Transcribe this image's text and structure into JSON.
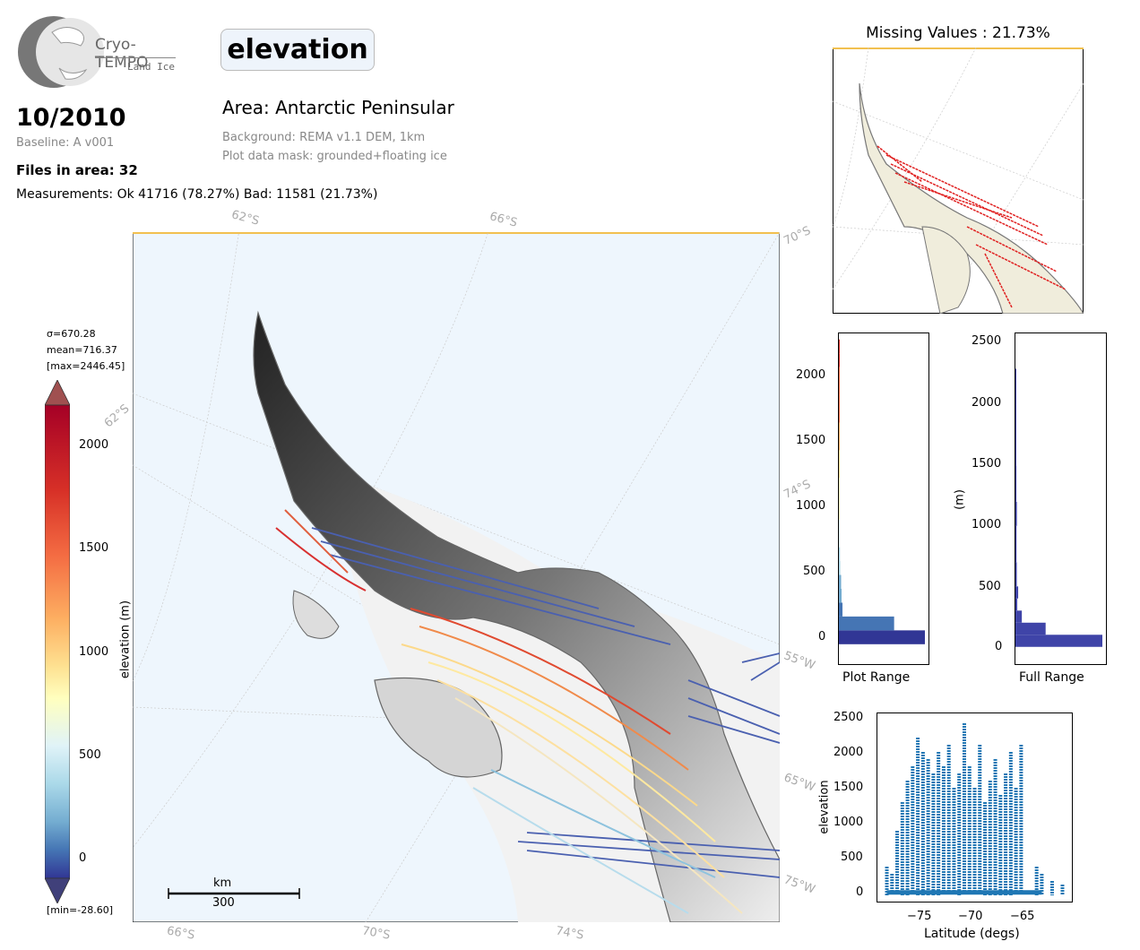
{
  "logo": {
    "name": "Cryo-TEMPO",
    "subtitle": "Land Ice"
  },
  "header": {
    "parameter": "elevation",
    "date": "10/2010",
    "baseline": "Baseline: A v001",
    "files_in_area": "Files in area: 32",
    "measurements": "Measurements: Ok 41716 (78.27%) Bad: 11581 (21.73%)",
    "area": "Area: Antarctic Peninsular",
    "background": "Background: REMA v1.1 DEM, 1km",
    "plot_mask": "Plot data mask: grounded+floating ice"
  },
  "map": {
    "lat_labels_top": [
      "62°S",
      "66°S",
      "70°S"
    ],
    "lat_labels_left": [
      "62°S"
    ],
    "lat_labels_right": [
      "74°S",
      "55°W",
      "65°W",
      "75°W"
    ],
    "lat_labels_bottom": [
      "66°S",
      "70°S",
      "74°S"
    ],
    "scalebar": {
      "unit": "km",
      "length": "300"
    }
  },
  "colorbar": {
    "label": "elevation (m)",
    "sigma": "σ=670.28",
    "mean": "mean=716.37",
    "max": "[max=2446.45]",
    "min": "[min=-28.60]",
    "ticks": [
      "2000",
      "1500",
      "1000",
      "500",
      "0"
    ]
  },
  "inset": {
    "title": "Missing Values : 21.73%"
  },
  "hist_plot_range": {
    "xlabel": "Plot Range",
    "ticks": [
      "2000",
      "1500",
      "1000",
      "500",
      "0"
    ]
  },
  "hist_full_range": {
    "xlabel": "Full Range",
    "ylabel": "(m)",
    "ticks": [
      "2500",
      "2000",
      "1500",
      "1000",
      "500",
      "0"
    ]
  },
  "scatter": {
    "xlabel": "Latitude (degs)",
    "ylabel": "elevation",
    "yticks": [
      "2500",
      "2000",
      "1500",
      "1000",
      "500",
      "0"
    ],
    "xticks": [
      "−75",
      "−70",
      "−65"
    ]
  },
  "chart_data": [
    {
      "type": "bar",
      "title": "",
      "xlabel": "Plot Range",
      "ylabel": "",
      "orientation": "horizontal",
      "ylim": [
        -150,
        2250
      ],
      "bins": [
        0,
        100,
        200,
        300,
        400,
        500,
        600,
        700,
        800,
        900,
        1000,
        1200,
        1400,
        1600,
        1800,
        2000,
        2100
      ],
      "counts": [
        9500,
        6100,
        400,
        300,
        250,
        150,
        120,
        110,
        100,
        90,
        80,
        70,
        60,
        60,
        50,
        40,
        20
      ]
    },
    {
      "type": "bar",
      "title": "",
      "xlabel": "Full Range",
      "ylabel": "(m)",
      "orientation": "horizontal",
      "ylim": [
        -150,
        2600
      ],
      "bins": [
        0,
        100,
        200,
        300,
        400,
        500,
        700,
        1000,
        1200,
        1500,
        2000,
        2200
      ],
      "counts": [
        9500,
        3300,
        700,
        200,
        300,
        150,
        120,
        160,
        110,
        90,
        70,
        30
      ]
    },
    {
      "type": "scatter",
      "title": "",
      "xlabel": "Latitude (degs)",
      "ylabel": "elevation",
      "xlim": [
        -79,
        -60
      ],
      "ylim": [
        -100,
        2550
      ],
      "x": [
        -78,
        -77.5,
        -77,
        -76.5,
        -76,
        -75.5,
        -75,
        -74.5,
        -74,
        -73.5,
        -73,
        -72.5,
        -72,
        -71.5,
        -71,
        -70.5,
        -70,
        -69.5,
        -69,
        -68.5,
        -68,
        -67.5,
        -67,
        -66.5,
        -66,
        -65.5,
        -65,
        -63.5,
        -63,
        -62,
        -61
      ],
      "y": [
        400,
        300,
        900,
        1300,
        1600,
        1800,
        2200,
        2000,
        1900,
        1700,
        2000,
        1800,
        2100,
        1500,
        1700,
        2400,
        1800,
        1500,
        2100,
        1300,
        1600,
        1900,
        1400,
        1700,
        2000,
        1500,
        2100,
        400,
        300,
        200,
        150
      ]
    }
  ]
}
